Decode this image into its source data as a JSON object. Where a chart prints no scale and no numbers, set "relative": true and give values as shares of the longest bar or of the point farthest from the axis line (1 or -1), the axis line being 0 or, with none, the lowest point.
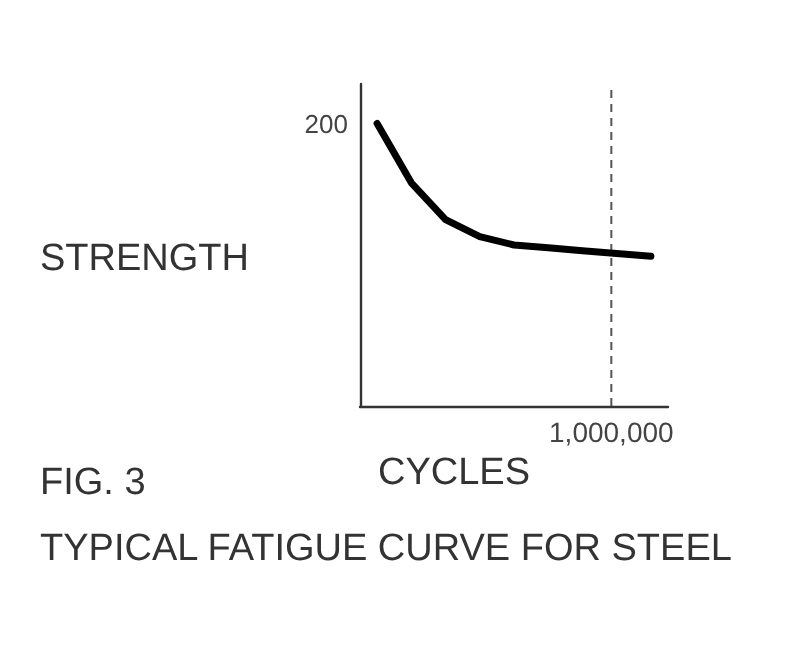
{
  "chart_data": {
    "type": "line",
    "relative": true,
    "xlabel": "CYCLES",
    "ylabel": "STRENGTH",
    "categories": [
      null,
      null,
      null,
      null,
      null,
      null,
      null,
      null,
      null
    ],
    "series": [
      {
        "color": "#000000",
        "values": [
          1,
          0.79,
          0.66,
          0.6,
          0.57,
          0.56,
          0.55,
          0.54,
          0.53
        ]
      }
    ],
    "annotations": [
      "200",
      "1,000,000",
      "FIG. 3",
      "TYPICAL FATIGUE CURVE FOR STEEL"
    ],
    "grid": false,
    "marker": "none",
    "line_style": "solid"
  }
}
